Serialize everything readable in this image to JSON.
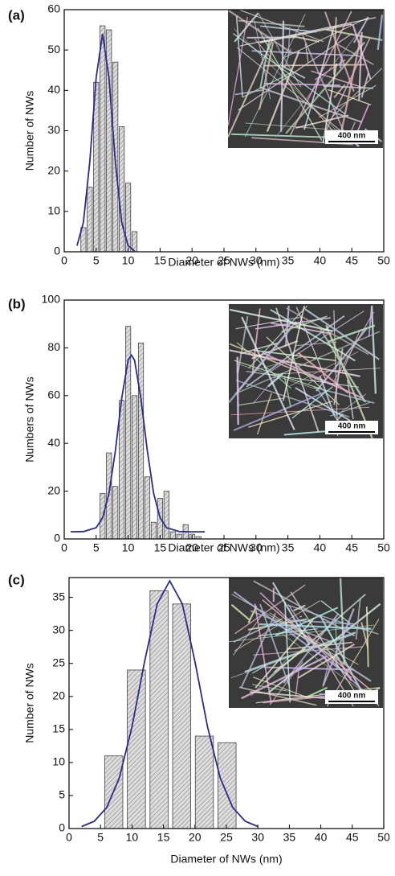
{
  "chart_data": [
    {
      "type": "histogram",
      "panel_label": "(a)",
      "xlabel": "Diameter of NWs (nm)",
      "ylabel": "Number of NWs",
      "inset_scale": "400 nm",
      "bins": [
        2.5,
        3.5,
        4.5,
        5.5,
        6.5,
        7.5,
        8.5,
        9.5,
        10.5,
        11.5
      ],
      "values": [
        6,
        16,
        42,
        56,
        55,
        47,
        31,
        17,
        5
      ],
      "color": "#d9d9d9",
      "fit": {
        "color": "#2b2b8c",
        "x": [
          2,
          3,
          4,
          5,
          6,
          7,
          8,
          9,
          10,
          11
        ],
        "values": [
          1.5,
          7.3,
          22.2,
          43.2,
          54,
          43.2,
          22.2,
          7.3,
          1.5,
          0.2
        ]
      },
      "xlim": [
        0,
        50
      ],
      "xticks": [
        0,
        5,
        10,
        15,
        20,
        25,
        30,
        35,
        40,
        45,
        50
      ],
      "ylim": [
        0,
        60
      ],
      "yticks": [
        0,
        10,
        20,
        30,
        40,
        50,
        60
      ]
    },
    {
      "type": "histogram",
      "panel_label": "(b)",
      "xlabel": "Diameter of NWs (nm)",
      "ylabel": "Numbers of NWs",
      "inset_scale": "400 nm",
      "bins": [
        5.5,
        6.5,
        7.5,
        8.5,
        9.5,
        10.5,
        11.5,
        12.5,
        13.5,
        14.5,
        15.5,
        16.5,
        17.5,
        18.5,
        19.5,
        20.5,
        21.5
      ],
      "values": [
        19,
        36,
        22,
        58,
        89,
        60,
        82,
        26,
        7,
        17,
        20,
        3,
        2,
        6,
        2,
        1
      ],
      "color": "#d9d9d9",
      "fit": {
        "color": "#2b2b8c",
        "x": [
          1,
          3,
          5,
          6,
          7,
          8,
          9,
          10,
          10.5,
          11,
          12,
          13,
          14,
          15,
          16,
          18,
          20,
          22
        ],
        "values": [
          3,
          3.1,
          4.7,
          8.9,
          19,
          36.9,
          58.9,
          74.8,
          77,
          74.8,
          58.9,
          36.9,
          19,
          8.9,
          4.7,
          3.1,
          3,
          3
        ]
      },
      "xlim": [
        0,
        50
      ],
      "xticks": [
        0,
        5,
        10,
        15,
        20,
        25,
        30,
        35,
        40,
        45,
        50
      ],
      "ylim": [
        0,
        100
      ],
      "yticks": [
        0,
        20,
        40,
        60,
        80,
        100
      ]
    },
    {
      "type": "histogram",
      "panel_label": "(c)",
      "xlabel": "Diameter of NWs (nm)",
      "ylabel": "Number of NWs",
      "inset_scale": "400 nm",
      "bins": [
        5.3,
        8.9,
        12.5,
        16.1,
        19.7,
        23.3,
        26.9
      ],
      "values": [
        11,
        24,
        36,
        34,
        14,
        13
      ],
      "color": "#d9d9d9",
      "fit": {
        "color": "#2b2b8c",
        "x": [
          2,
          4,
          6,
          8,
          10,
          12,
          14,
          16,
          18,
          20,
          22,
          24,
          26,
          28,
          30
        ],
        "values": [
          0.3,
          1.1,
          3.2,
          7.7,
          15.4,
          25.3,
          34,
          37.5,
          34,
          25.3,
          15.4,
          7.7,
          3.2,
          1.1,
          0.3
        ]
      },
      "xlim": [
        0,
        50
      ],
      "xticks": [
        0,
        5,
        10,
        15,
        20,
        25,
        30,
        35,
        40,
        45,
        50
      ],
      "ylim": [
        0,
        38
      ],
      "yticks": [
        0,
        5,
        10,
        15,
        20,
        25,
        30,
        35
      ]
    }
  ]
}
